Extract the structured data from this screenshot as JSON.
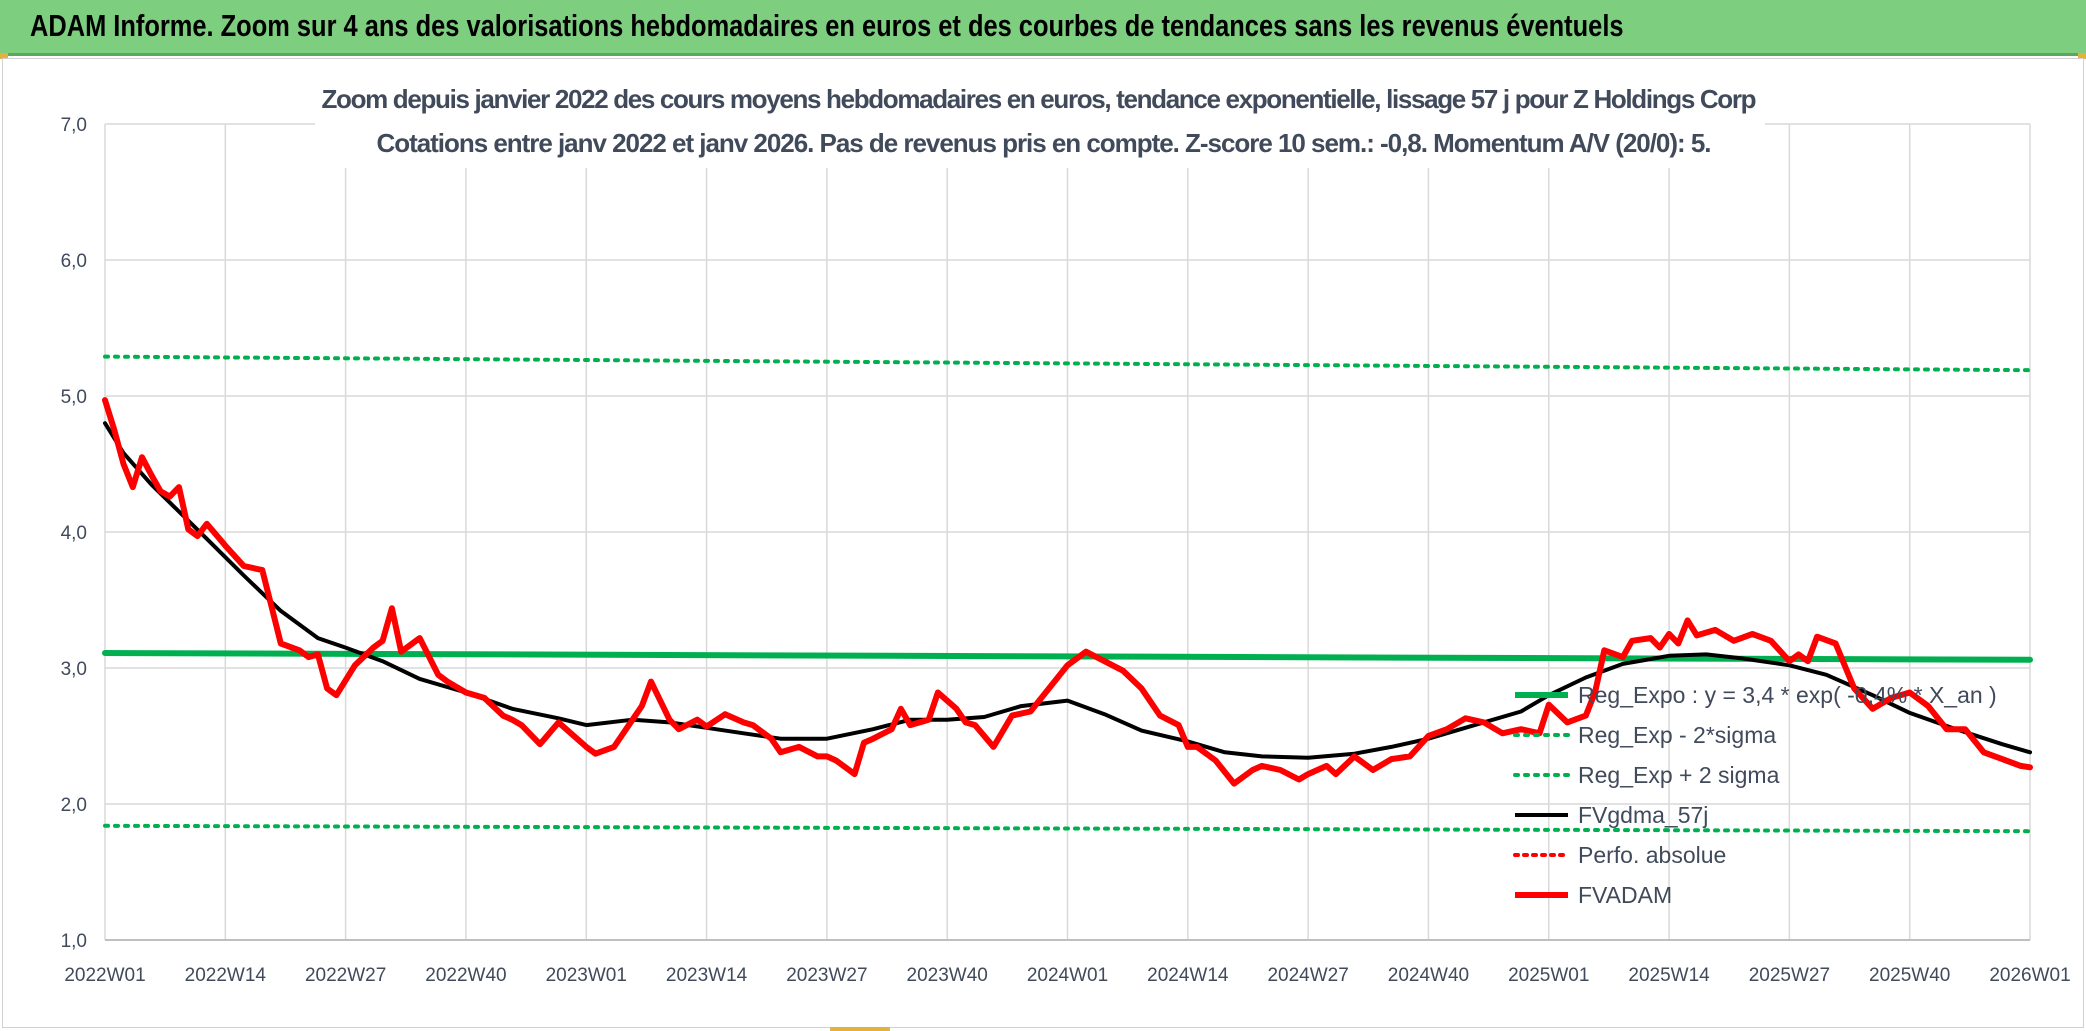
{
  "banner": {
    "title": "ADAM Informe. Zoom sur 4 ans des valorisations hebdomadaires en euros et des courbes de tendances sans les revenus éventuels"
  },
  "colors": {
    "banner_bg": "#7dce7f",
    "reg_expo": "#00b050",
    "sigma_bands": "#00b050",
    "fvgdma": "#000000",
    "perfo_absolue": "#ff0000",
    "fvadam": "#ff0000",
    "grid": "#d9d9d9",
    "text": "#404a5a"
  },
  "chart_data": {
    "type": "line",
    "title": "Zoom depuis janvier 2022 des cours moyens hebdomadaires en euros, tendance exponentielle, lissage 57 j pour Z Holdings Corp",
    "subtitle": "Cotations entre janv 2022 et janv 2026. Pas de revenus pris en compte. Z-score 10 sem.: -0,8. Momentum A/V (20/0): 5.",
    "xlabel": "",
    "ylabel": "",
    "ylim": [
      1.0,
      7.0
    ],
    "y_ticks": [
      "1,0",
      "2,0",
      "3,0",
      "4,0",
      "5,0",
      "6,0",
      "7,0"
    ],
    "x_ticks": [
      "2022W01",
      "2022W14",
      "2022W27",
      "2022W40",
      "2023W01",
      "2023W14",
      "2023W27",
      "2023W40",
      "2024W01",
      "2024W14",
      "2024W27",
      "2024W40",
      "2025W01",
      "2025W14",
      "2025W27",
      "2025W40",
      "2026W01"
    ],
    "grid": true,
    "legend_position": "right",
    "series": [
      {
        "name": "Reg_Expo : y = 3,4 * exp( -0,4% * X_an )",
        "style": "solid-thick",
        "x": [
          "2022W01",
          "2026W01"
        ],
        "values": [
          3.11,
          3.06
        ]
      },
      {
        "name": "Reg_Exp - 2*sigma",
        "style": "dotted",
        "x": [
          "2022W01",
          "2026W01"
        ],
        "values": [
          1.84,
          1.8
        ]
      },
      {
        "name": "Reg_Exp + 2 sigma",
        "style": "dotted",
        "x": [
          "2022W01",
          "2026W01"
        ],
        "values": [
          5.29,
          5.19
        ]
      },
      {
        "name": "FVgdma_57j",
        "style": "solid",
        "x": [
          "2022W01",
          "2022W03",
          "2022W06",
          "2022W09",
          "2022W12",
          "2022W16",
          "2022W20",
          "2022W24",
          "2022W27",
          "2022W31",
          "2022W35",
          "2022W40",
          "2022W45",
          "2022W50",
          "2023W01",
          "2023W06",
          "2023W10",
          "2023W14",
          "2023W18",
          "2023W22",
          "2023W27",
          "2023W32",
          "2023W36",
          "2023W40",
          "2023W44",
          "2023W48",
          "2024W01",
          "2024W05",
          "2024W09",
          "2024W14",
          "2024W18",
          "2024W22",
          "2024W27",
          "2024W32",
          "2024W36",
          "2024W40",
          "2024W45",
          "2024W50",
          "2025W01",
          "2025W05",
          "2025W09",
          "2025W14",
          "2025W18",
          "2025W22",
          "2025W27",
          "2025W31",
          "2025W36",
          "2025W40",
          "2025W45",
          "2025W50",
          "2026W01"
        ],
        "values": [
          4.8,
          4.58,
          4.35,
          4.15,
          3.95,
          3.68,
          3.42,
          3.22,
          3.15,
          3.05,
          2.92,
          2.82,
          2.7,
          2.63,
          2.58,
          2.62,
          2.6,
          2.56,
          2.52,
          2.48,
          2.48,
          2.55,
          2.62,
          2.62,
          2.64,
          2.72,
          2.76,
          2.66,
          2.54,
          2.46,
          2.38,
          2.35,
          2.34,
          2.37,
          2.42,
          2.48,
          2.58,
          2.68,
          2.8,
          2.93,
          3.03,
          3.09,
          3.1,
          3.07,
          3.02,
          2.95,
          2.8,
          2.67,
          2.55,
          2.44,
          2.38
        ]
      },
      {
        "name": "Perfo. absolue",
        "style": "dotted-red",
        "x": [],
        "values": []
      },
      {
        "name": "FVADAM",
        "style": "solid-thick",
        "x": [
          "2022W01",
          "2022W02",
          "2022W03",
          "2022W04",
          "2022W05",
          "2022W06",
          "2022W07",
          "2022W08",
          "2022W09",
          "2022W10",
          "2022W11",
          "2022W12",
          "2022W13",
          "2022W14",
          "2022W16",
          "2022W18",
          "2022W19",
          "2022W20",
          "2022W22",
          "2022W23",
          "2022W24",
          "2022W25",
          "2022W26",
          "2022W28",
          "2022W30",
          "2022W31",
          "2022W32",
          "2022W33",
          "2022W35",
          "2022W37",
          "2022W38",
          "2022W40",
          "2022W42",
          "2022W44",
          "2022W45",
          "2022W46",
          "2022W48",
          "2022W50",
          "2023W01",
          "2023W02",
          "2023W04",
          "2023W06",
          "2023W07",
          "2023W08",
          "2023W10",
          "2023W11",
          "2023W13",
          "2023W14",
          "2023W16",
          "2023W18",
          "2023W19",
          "2023W21",
          "2023W22",
          "2023W24",
          "2023W26",
          "2023W27",
          "2023W28",
          "2023W30",
          "2023W31",
          "2023W32",
          "2023W34",
          "2023W35",
          "2023W36",
          "2023W38",
          "2023W39",
          "2023W41",
          "2023W42",
          "2023W43",
          "2023W45",
          "2023W47",
          "2023W49",
          "2024W01",
          "2024W03",
          "2024W05",
          "2024W07",
          "2024W09",
          "2024W11",
          "2024W13",
          "2024W14",
          "2024W15",
          "2024W17",
          "2024W19",
          "2024W21",
          "2024W22",
          "2024W24",
          "2024W26",
          "2024W27",
          "2024W29",
          "2024W30",
          "2024W32",
          "2024W34",
          "2024W36",
          "2024W38",
          "2024W40",
          "2024W42",
          "2024W44",
          "2024W46",
          "2024W48",
          "2024W50",
          "2024W52",
          "2025W01",
          "2025W03",
          "2025W05",
          "2025W06",
          "2025W07",
          "2025W09",
          "2025W10",
          "2025W12",
          "2025W13",
          "2025W14",
          "2025W15",
          "2025W16",
          "2025W17",
          "2025W19",
          "2025W21",
          "2025W23",
          "2025W25",
          "2025W27",
          "2025W28",
          "2025W29",
          "2025W30",
          "2025W32",
          "2025W34",
          "2025W36",
          "2025W38",
          "2025W40",
          "2025W42",
          "2025W44",
          "2025W46",
          "2025W48",
          "2025W50",
          "2025W52",
          "2026W01"
        ],
        "values": [
          4.97,
          4.75,
          4.5,
          4.33,
          4.55,
          4.42,
          4.3,
          4.26,
          4.33,
          4.02,
          3.97,
          4.06,
          3.98,
          3.9,
          3.75,
          3.72,
          3.45,
          3.18,
          3.13,
          3.08,
          3.1,
          2.85,
          2.8,
          3.02,
          3.15,
          3.2,
          3.44,
          3.12,
          3.22,
          2.95,
          2.9,
          2.82,
          2.78,
          2.65,
          2.62,
          2.58,
          2.44,
          2.6,
          2.42,
          2.37,
          2.42,
          2.62,
          2.72,
          2.9,
          2.62,
          2.55,
          2.62,
          2.57,
          2.66,
          2.6,
          2.58,
          2.48,
          2.38,
          2.42,
          2.35,
          2.35,
          2.32,
          2.22,
          2.45,
          2.48,
          2.55,
          2.7,
          2.58,
          2.62,
          2.82,
          2.7,
          2.6,
          2.58,
          2.42,
          2.65,
          2.68,
          3.02,
          3.12,
          3.05,
          2.98,
          2.85,
          2.65,
          2.58,
          2.42,
          2.42,
          2.32,
          2.15,
          2.25,
          2.28,
          2.25,
          2.18,
          2.22,
          2.28,
          2.22,
          2.35,
          2.25,
          2.33,
          2.35,
          2.5,
          2.55,
          2.63,
          2.6,
          2.52,
          2.55,
          2.52,
          2.73,
          2.6,
          2.65,
          2.82,
          3.13,
          3.08,
          3.2,
          3.22,
          3.15,
          3.25,
          3.18,
          3.35,
          3.24,
          3.28,
          3.2,
          3.25,
          3.2,
          3.05,
          3.1,
          3.05,
          3.23,
          3.18,
          2.85,
          2.7,
          2.78,
          2.82,
          2.72,
          2.55,
          2.55,
          2.38,
          2.33,
          2.28,
          2.27
        ]
      }
    ]
  }
}
